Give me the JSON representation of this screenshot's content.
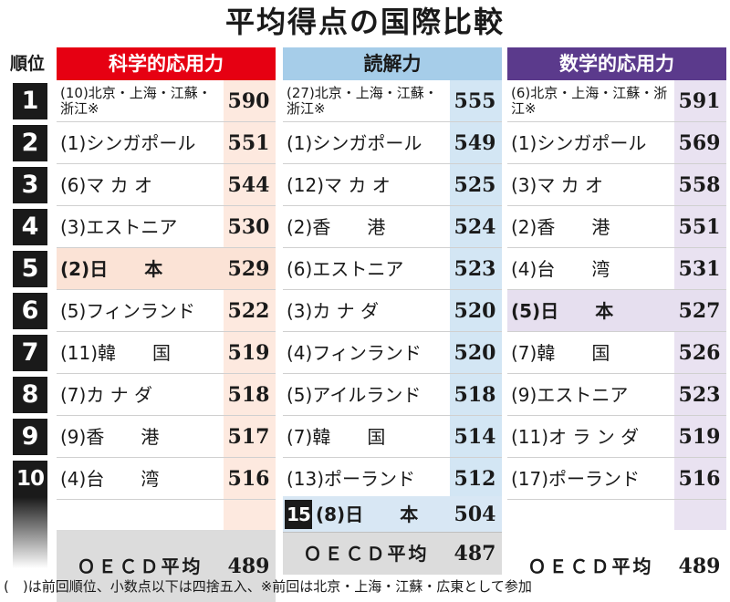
{
  "title": "平均得点の国際比較",
  "rank_header": "順位",
  "ranks": [
    "1",
    "2",
    "3",
    "4",
    "5",
    "6",
    "7",
    "8",
    "9",
    "10"
  ],
  "colors": {
    "science": "#e60012",
    "reading": "#a6cde9",
    "math": "#5b3a8c",
    "score_red": "#fde9df",
    "score_blue": "#d3e6f4",
    "score_purple": "#e9e2f1"
  },
  "chart_data": {
    "type": "table",
    "title": "平均得点の国際比較",
    "columns": [
      {
        "name": "科学的応用力",
        "rows": [
          {
            "rank": 1,
            "country": "(10)北京・上海・江蘇・浙江※",
            "score": 590
          },
          {
            "rank": 2,
            "country": "(1)シンガポール",
            "score": 551
          },
          {
            "rank": 3,
            "country": "(6)マ カ オ",
            "score": 544
          },
          {
            "rank": 4,
            "country": "(3)エストニア",
            "score": 530
          },
          {
            "rank": 5,
            "country": "(2)日　　本",
            "score": 529,
            "highlight": true
          },
          {
            "rank": 6,
            "country": "(5)フィンランド",
            "score": 522
          },
          {
            "rank": 7,
            "country": "(11)韓　　国",
            "score": 519
          },
          {
            "rank": 8,
            "country": "(7)カ ナ ダ",
            "score": 518
          },
          {
            "rank": 9,
            "country": "(9)香　　港",
            "score": 517
          },
          {
            "rank": 10,
            "country": "(4)台　　湾",
            "score": 516
          }
        ],
        "oecd": {
          "label": "ＯＥＣＤ平均",
          "score": 489
        }
      },
      {
        "name": "読解力",
        "rows": [
          {
            "rank": 1,
            "country": "(27)北京・上海・江蘇・浙江※",
            "score": 555
          },
          {
            "rank": 2,
            "country": "(1)シンガポール",
            "score": 549
          },
          {
            "rank": 3,
            "country": "(12)マ カ オ",
            "score": 525
          },
          {
            "rank": 4,
            "country": "(2)香　　港",
            "score": 524
          },
          {
            "rank": 5,
            "country": "(6)エストニア",
            "score": 523
          },
          {
            "rank": 6,
            "country": "(3)カ ナ ダ",
            "score": 520
          },
          {
            "rank": 7,
            "country": "(4)フィンランド",
            "score": 520
          },
          {
            "rank": 8,
            "country": "(5)アイルランド",
            "score": 518
          },
          {
            "rank": 9,
            "country": "(7)韓　　国",
            "score": 514
          },
          {
            "rank": 10,
            "country": "(13)ポーランド",
            "score": 512
          }
        ],
        "japan": {
          "rank": "15",
          "country": "(8)日　　本",
          "score": 504
        },
        "oecd": {
          "label": "ＯＥＣＤ平均",
          "score": 487
        }
      },
      {
        "name": "数学的応用力",
        "rows": [
          {
            "rank": 1,
            "country": "(6)北京・上海・江蘇・浙江※",
            "score": 591
          },
          {
            "rank": 2,
            "country": "(1)シンガポール",
            "score": 569
          },
          {
            "rank": 3,
            "country": "(3)マ カ オ",
            "score": 558
          },
          {
            "rank": 4,
            "country": "(2)香　　港",
            "score": 551
          },
          {
            "rank": 5,
            "country": "(4)台　　湾",
            "score": 531
          },
          {
            "rank": 6,
            "country": "(5)日　　本",
            "score": 527,
            "highlight": true
          },
          {
            "rank": 7,
            "country": "(7)韓　　国",
            "score": 526
          },
          {
            "rank": 8,
            "country": "(9)エストニア",
            "score": 523
          },
          {
            "rank": 9,
            "country": "(11)オ ラ ン ダ",
            "score": 519
          },
          {
            "rank": 10,
            "country": "(17)ポーランド",
            "score": 516
          }
        ],
        "oecd": {
          "label": "ＯＥＣＤ平均",
          "score": 489
        }
      }
    ]
  },
  "footnote": "(　)は前回順位、小数点以下は四捨五入、※前回は北京・上海・江蘇・広東として参加"
}
